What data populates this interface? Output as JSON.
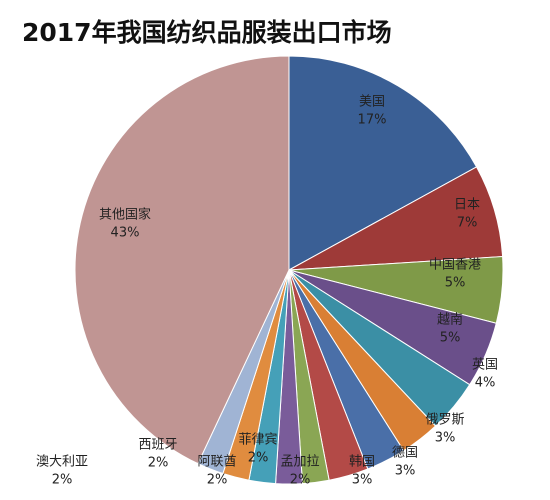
{
  "chart_data": {
    "type": "pie",
    "title": "2017年我国纺织品服装出口市场",
    "categories": [
      "美国",
      "日本",
      "中国香港",
      "越南",
      "英国",
      "俄罗斯",
      "德国",
      "韩国",
      "孟加拉",
      "菲律宾",
      "阿联酋",
      "西班牙",
      "澳大利亚",
      "其他国家"
    ],
    "values": [
      17,
      7,
      5,
      5,
      4,
      3,
      3,
      3,
      2,
      2,
      2,
      2,
      2,
      43
    ],
    "value_labels": [
      "17%",
      "7%",
      "5%",
      "5%",
      "4%",
      "3%",
      "3%",
      "3%",
      "2%",
      "2%",
      "2%",
      "2%",
      "2%",
      "43%"
    ],
    "colors": [
      "#3a5f95",
      "#9e3a38",
      "#7f9a48",
      "#6a4f8a",
      "#3b8fa5",
      "#d97f34",
      "#4a6fa8",
      "#b34a47",
      "#8aa654",
      "#7a5c9a",
      "#45a0b8",
      "#e08c3f",
      "#a0b4d4",
      "#c09593"
    ]
  }
}
